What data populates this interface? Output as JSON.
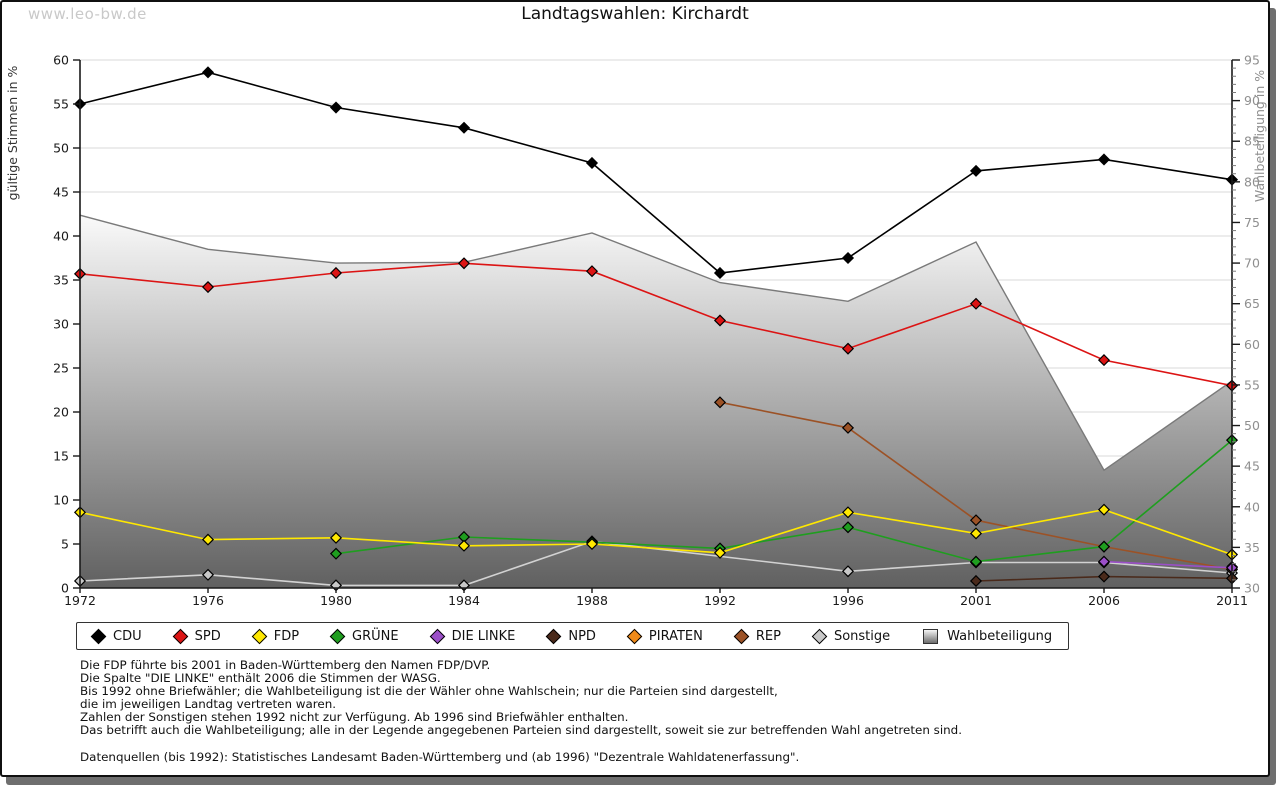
{
  "watermark": "www.leo-bw.de",
  "title": "Landtagswahlen: Kirchardt",
  "axes": {
    "left_label": "gültige Stimmen in %",
    "right_label": "Wahlbeteiligung in %",
    "left_min": 0,
    "left_max": 60,
    "left_step": 5,
    "right_min": 30,
    "right_max": 95,
    "right_step": 5,
    "right_minor_step": 1
  },
  "chart_data": {
    "type": "line",
    "title": "Landtagswahlen: Kirchardt",
    "categories": [
      "1972",
      "1976",
      "1980",
      "1984",
      "1988",
      "1992",
      "1996",
      "2001",
      "2006",
      "2011"
    ],
    "xlabel": "",
    "ylabel_left": "gültige Stimmen in %",
    "ylabel_right": "Wahlbeteiligung in %",
    "ylim_left": [
      0,
      60
    ],
    "ylim_right": [
      30,
      95
    ],
    "grid": true,
    "legend_position": "bottom",
    "series": [
      {
        "name": "CDU",
        "type": "line",
        "axis": "left",
        "color": "#000000",
        "values": [
          55.0,
          58.6,
          54.6,
          52.3,
          48.3,
          35.8,
          37.5,
          47.4,
          48.7,
          46.4
        ]
      },
      {
        "name": "SPD",
        "type": "line",
        "axis": "left",
        "color": "#dc1414",
        "values": [
          35.7,
          34.2,
          35.8,
          36.9,
          36.0,
          30.4,
          27.2,
          32.3,
          25.9,
          23.0
        ]
      },
      {
        "name": "FDP",
        "type": "line",
        "axis": "left",
        "color": "#ffe800",
        "values": [
          8.6,
          5.5,
          5.7,
          4.8,
          5.0,
          4.0,
          8.6,
          6.2,
          8.9,
          3.8
        ]
      },
      {
        "name": "GRÜNE",
        "type": "line",
        "axis": "left",
        "color": "#1f9e1f",
        "values": [
          null,
          null,
          3.9,
          5.8,
          5.2,
          4.5,
          6.9,
          3.0,
          4.7,
          16.8
        ]
      },
      {
        "name": "DIE LINKE",
        "type": "line",
        "axis": "left",
        "color": "#9b4fc8",
        "values": [
          null,
          null,
          null,
          null,
          null,
          null,
          null,
          null,
          3.0,
          2.3
        ]
      },
      {
        "name": "NPD",
        "type": "line",
        "axis": "left",
        "color": "#4a2a1b",
        "values": [
          null,
          null,
          null,
          null,
          null,
          null,
          null,
          0.8,
          1.3,
          1.1
        ]
      },
      {
        "name": "PIRATEN",
        "type": "line",
        "axis": "left",
        "color": "#ef8a19",
        "values": [
          null,
          null,
          null,
          null,
          null,
          null,
          null,
          null,
          null,
          2.4
        ]
      },
      {
        "name": "REP",
        "type": "line",
        "axis": "left",
        "color": "#9c5226",
        "values": [
          null,
          null,
          null,
          null,
          null,
          21.1,
          18.2,
          7.7,
          4.7,
          2.1
        ]
      },
      {
        "name": "Sonstige",
        "type": "line",
        "axis": "left",
        "color": "#c8c8c8",
        "line_color": "#d2d2d2",
        "values": [
          0.8,
          1.5,
          0.3,
          0.3,
          5.3,
          null,
          1.9,
          2.9,
          2.9,
          1.7
        ]
      },
      {
        "name": "Wahlbeteiligung",
        "type": "area",
        "axis": "right",
        "color": "#8c8c8c",
        "gradient": [
          "#fafafa",
          "#606060"
        ],
        "values": [
          75.9,
          71.7,
          70.0,
          70.1,
          73.7,
          67.6,
          65.3,
          72.6,
          44.5,
          55.5
        ]
      }
    ]
  },
  "footnotes": [
    "Die FDP führte bis 2001 in Baden-Württemberg den Namen FDP/DVP.",
    "Die Spalte \"DIE LINKE\" enthält 2006 die Stimmen der WASG.",
    "Bis 1992 ohne Briefwähler; die Wahlbeteiligung ist die der Wähler ohne Wahlschein; nur die Parteien sind dargestellt,",
    "die im jeweiligen Landtag vertreten waren.",
    "Zahlen der Sonstigen stehen 1992 nicht zur Verfügung. Ab 1996 sind Briefwähler enthalten.",
    "Das betrifft auch die Wahlbeteiligung; alle in der Legende angegebenen Parteien sind dargestellt, soweit sie zur betreffenden Wahl angetreten sind.",
    "",
    "Datenquellen (bis 1992): Statistisches Landesamt Baden-Württemberg und (ab 1996) \"Dezentrale Wahldatenerfassung\"."
  ]
}
